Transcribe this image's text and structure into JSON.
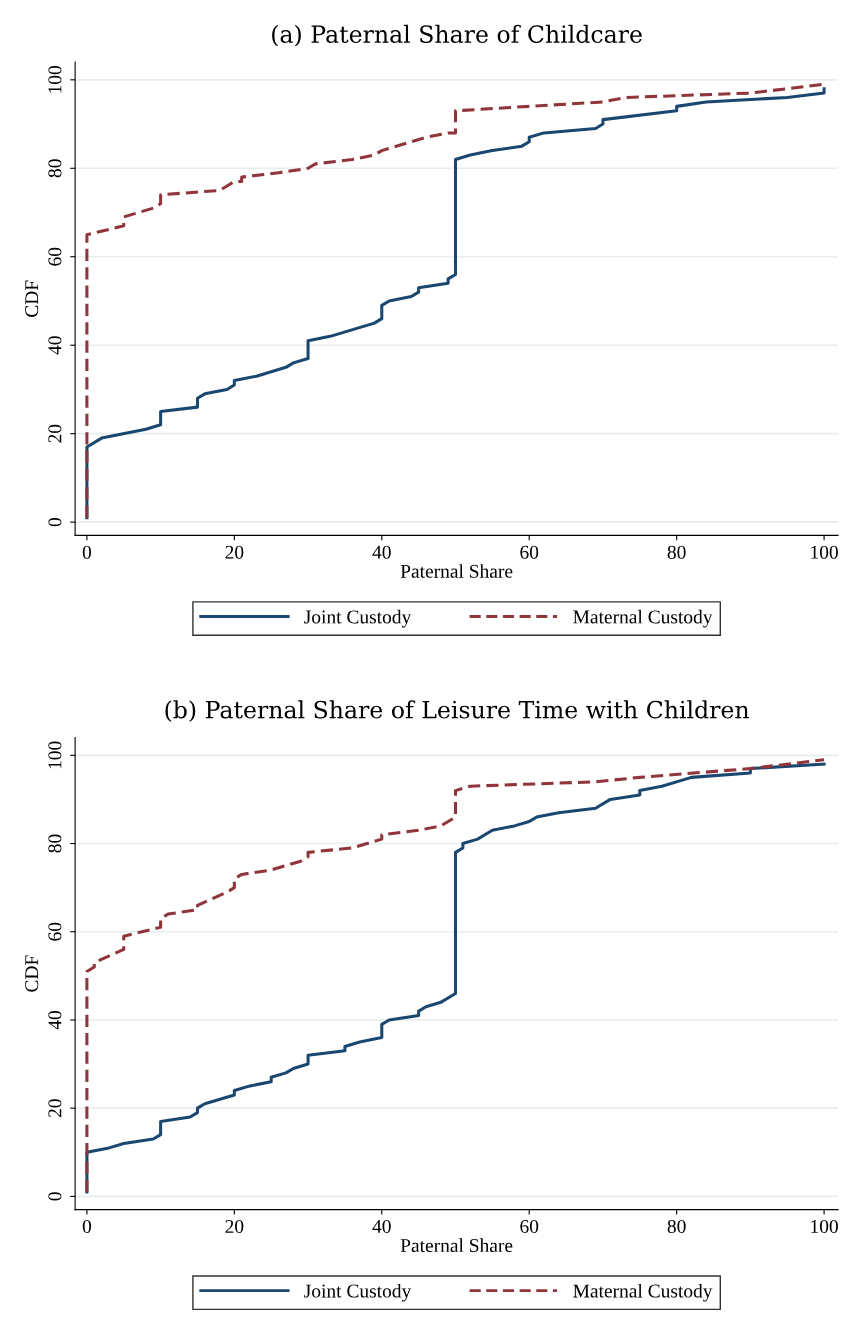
{
  "chart_data": [
    {
      "type": "line",
      "title": "(a) Paternal Share of Childcare",
      "xlabel": "Paternal Share",
      "ylabel": "CDF",
      "xlim": [
        -1.6,
        101.9
      ],
      "ylim": [
        -3,
        104
      ],
      "xticks": [
        0,
        20,
        40,
        60,
        80,
        100
      ],
      "yticks": [
        0,
        20,
        40,
        60,
        80,
        100
      ],
      "grid": "y",
      "legend": "bottom",
      "series": [
        {
          "name": "Joint Custody",
          "color": "#1a476f",
          "line_style": "solid",
          "x": [
            0,
            0,
            2,
            8,
            10,
            10,
            15,
            15,
            16,
            19,
            20,
            20,
            23,
            27,
            28,
            30,
            30,
            33,
            39,
            40,
            40,
            41,
            44,
            45,
            45,
            49,
            49,
            50,
            50,
            52,
            55,
            59,
            60,
            60,
            62,
            69,
            70,
            70,
            80,
            80,
            84,
            95,
            100,
            100
          ],
          "values": [
            1,
            17,
            19,
            21,
            22,
            25,
            26,
            28,
            29,
            30,
            31,
            32,
            33,
            35,
            36,
            37,
            41,
            42,
            45,
            46,
            49,
            50,
            51,
            52,
            53,
            54,
            55,
            56,
            82,
            83,
            84,
            85,
            86,
            87,
            88,
            89,
            90,
            91,
            93,
            94,
            95,
            96,
            97,
            98
          ]
        },
        {
          "name": "Maternal Custody",
          "color": "#90353b",
          "line_style": "dashed",
          "x": [
            0,
            0,
            5,
            5,
            9,
            10,
            10,
            18,
            19,
            20,
            21,
            21,
            26,
            30,
            31,
            36,
            39,
            40,
            46,
            49,
            50,
            50,
            70,
            73,
            90,
            100
          ],
          "values": [
            1,
            65,
            67,
            69,
            71,
            72,
            74,
            75,
            76,
            77,
            77,
            78,
            79,
            80,
            81,
            82,
            83,
            84,
            87,
            88,
            88,
            93,
            95,
            96,
            97,
            99
          ]
        }
      ]
    },
    {
      "type": "line",
      "title": "(b) Paternal Share of Leisure Time with Children",
      "xlabel": "Paternal Share",
      "ylabel": "CDF",
      "xlim": [
        -1.6,
        101.9
      ],
      "ylim": [
        -3,
        104
      ],
      "xticks": [
        0,
        20,
        40,
        60,
        80,
        100
      ],
      "yticks": [
        0,
        20,
        40,
        60,
        80,
        100
      ],
      "grid": "y",
      "legend": "bottom",
      "series": [
        {
          "name": "Joint Custody",
          "color": "#1a476f",
          "line_style": "solid",
          "x": [
            0,
            0,
            3,
            5,
            9,
            10,
            10,
            14,
            15,
            15,
            16,
            20,
            20,
            22,
            25,
            25,
            27,
            28,
            30,
            30,
            35,
            35,
            37,
            40,
            40,
            41,
            45,
            45,
            46,
            48,
            50,
            50,
            51,
            51,
            53,
            55,
            58,
            60,
            61,
            64,
            69,
            71,
            75,
            75,
            78,
            82,
            90,
            90,
            100
          ],
          "values": [
            1,
            10,
            11,
            12,
            13,
            14,
            17,
            18,
            19,
            20,
            21,
            23,
            24,
            25,
            26,
            27,
            28,
            29,
            30,
            32,
            33,
            34,
            35,
            36,
            39,
            40,
            41,
            42,
            43,
            44,
            46,
            78,
            79,
            80,
            81,
            83,
            84,
            85,
            86,
            87,
            88,
            90,
            91,
            92,
            93,
            95,
            96,
            97,
            98
          ]
        },
        {
          "name": "Maternal Custody",
          "color": "#90353b",
          "line_style": "dashed",
          "x": [
            0,
            0,
            1,
            1,
            5,
            5,
            5,
            10,
            10,
            11,
            15,
            15,
            19,
            20,
            20,
            21,
            25,
            29,
            30,
            30,
            36,
            40,
            40,
            45,
            48,
            50,
            50,
            52,
            69,
            75,
            90,
            100
          ],
          "values": [
            1,
            51,
            52,
            53,
            56,
            57,
            59,
            61,
            63,
            64,
            65,
            66,
            69,
            70,
            72,
            73,
            74,
            76,
            77,
            78,
            79,
            81,
            82,
            83,
            84,
            86,
            92,
            93,
            94,
            95,
            97,
            99
          ]
        }
      ]
    }
  ]
}
